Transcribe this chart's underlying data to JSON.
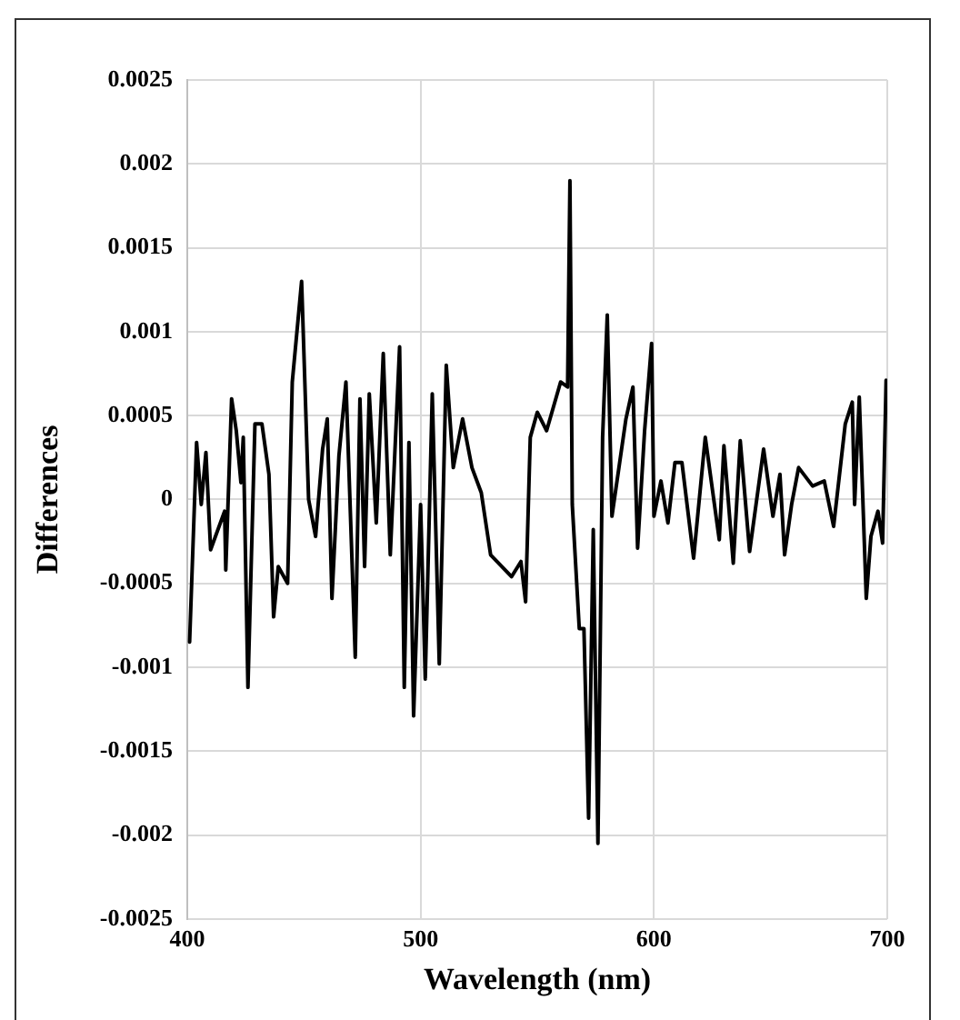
{
  "chart_data": {
    "type": "line",
    "xlabel": "Wavelength (nm)",
    "ylabel": "Differences",
    "x": [
      401,
      404,
      406,
      408,
      410,
      416,
      416.5,
      419,
      421,
      423,
      424,
      426,
      429,
      432,
      435,
      437,
      439,
      443,
      445,
      449,
      452,
      455,
      458,
      460,
      462,
      465,
      468,
      472,
      474,
      476,
      478,
      481,
      484,
      487,
      491,
      493,
      495,
      497,
      500,
      502,
      505,
      508,
      511,
      514,
      518,
      522,
      526,
      530,
      539,
      543,
      545,
      547,
      550,
      554,
      560,
      563,
      564,
      565,
      568,
      570,
      572,
      574,
      576,
      578,
      580,
      582,
      588,
      591,
      593,
      596,
      599,
      600,
      603,
      606,
      609,
      612,
      617,
      622,
      628,
      630,
      634,
      637,
      641,
      647,
      651,
      654,
      656,
      659,
      662,
      668,
      673,
      677,
      682,
      685,
      686,
      688,
      691,
      693,
      696,
      698,
      699.5
    ],
    "series": [
      {
        "color": "#000000",
        "values": [
          -0.00085,
          0.00034,
          -3e-05,
          0.00028,
          -0.0003,
          -7e-05,
          -0.00042,
          0.0006,
          0.00041,
          0.0001,
          0.00037,
          -0.00112,
          0.00045,
          0.00045,
          0.00015,
          -0.0007,
          -0.0004,
          -0.0005,
          0.0007,
          0.0013,
          0,
          -0.00022,
          0.0003,
          0.00048,
          -0.00059,
          0.00026,
          0.0007,
          -0.00094,
          0.0006,
          -0.0004,
          0.00063,
          -0.00014,
          0.00087,
          -0.00033,
          0.00091,
          -0.00112,
          0.00034,
          -0.00129,
          -3e-05,
          -0.00107,
          0.00063,
          -0.00098,
          0.0008,
          0.00019,
          0.00048,
          0.00019,
          4e-05,
          -0.00033,
          -0.00046,
          -0.00037,
          -0.00061,
          0.00037,
          0.00052,
          0.00041,
          0.0007,
          0.00067,
          0.0019,
          -3e-05,
          -0.00077,
          -0.00077,
          -0.0019,
          -0.00018,
          -0.00205,
          0.00037,
          0.0011,
          -0.0001,
          0.00048,
          0.00067,
          -0.00029,
          0.00041,
          0.00093,
          -0.0001,
          0.00011,
          -0.00014,
          0.00022,
          0.00022,
          -0.00035,
          0.00037,
          -0.00024,
          0.00032,
          -0.00038,
          0.00035,
          -0.00031,
          0.0003,
          -0.0001,
          0.00015,
          -0.00033,
          -3e-05,
          0.00019,
          8e-05,
          0.00011,
          -0.00016,
          0.00045,
          0.00058,
          -3e-05,
          0.00061,
          -0.00059,
          -0.00022,
          -7e-05,
          -0.00026,
          0.00071
        ]
      }
    ],
    "xlim": [
      400,
      700
    ],
    "xticks": [
      400,
      500,
      600,
      700
    ],
    "ylim": [
      -0.0025,
      0.0025
    ],
    "yticks": [
      -0.0025,
      -0.002,
      -0.0015,
      -0.001,
      -0.0005,
      0,
      0.0005,
      0.001,
      0.0015,
      0.002,
      0.0025
    ],
    "grid": true,
    "legend": false,
    "marker": "none",
    "line_style": "solid"
  }
}
